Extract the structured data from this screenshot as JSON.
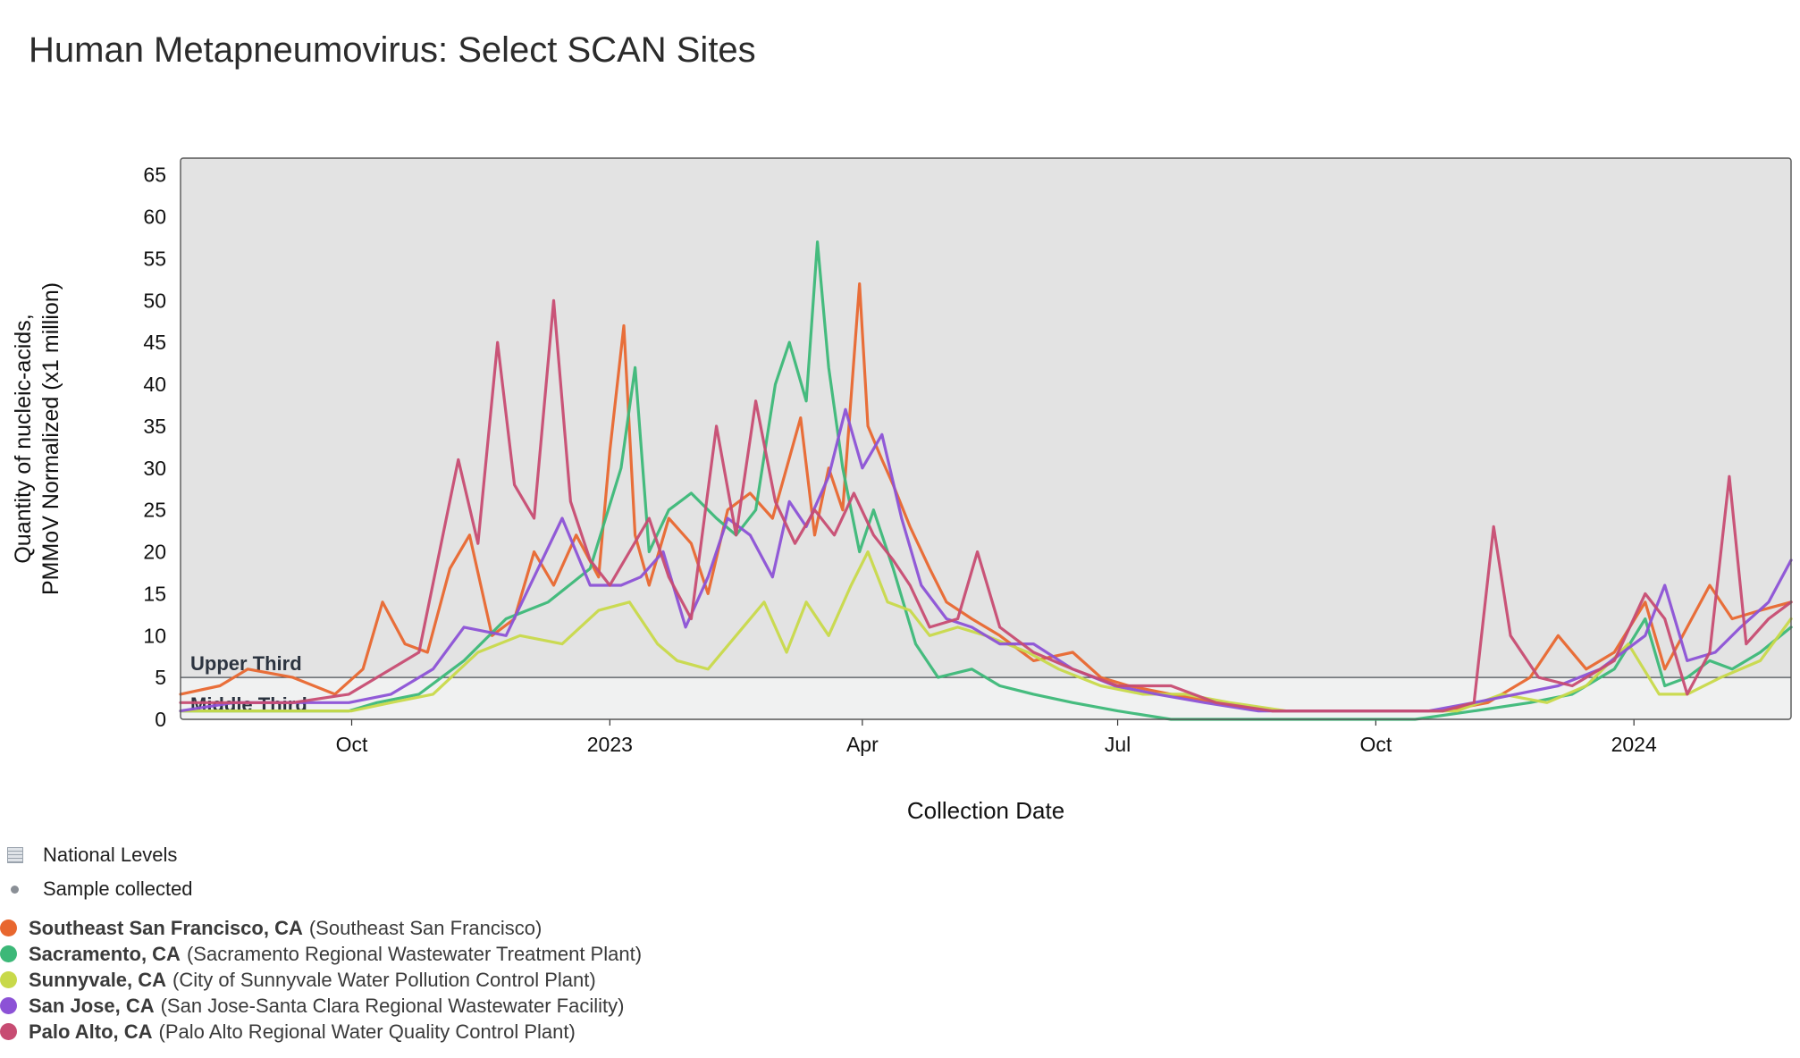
{
  "title": "Human Metapneumovirus: Select SCAN Sites",
  "chart_data": {
    "type": "line",
    "title": "Human Metapneumovirus: Select SCAN Sites",
    "xlabel": "Collection Date",
    "ylabel_line1": "Quantity of nucleic-acids,",
    "ylabel_line2": "PMMoV Normalized (x1 million)",
    "ylim": [
      0,
      67
    ],
    "xlim": [
      "2022-08-01",
      "2024-02-26"
    ],
    "yticks": [
      0,
      5,
      10,
      15,
      20,
      25,
      30,
      35,
      40,
      45,
      50,
      55,
      60,
      65
    ],
    "xticks": [
      {
        "date": "2022-10-01",
        "label": "Oct"
      },
      {
        "date": "2023-01-01",
        "label": "2023"
      },
      {
        "date": "2023-04-01",
        "label": "Apr"
      },
      {
        "date": "2023-07-01",
        "label": "Jul"
      },
      {
        "date": "2023-10-01",
        "label": "Oct"
      },
      {
        "date": "2024-01-01",
        "label": "2024"
      }
    ],
    "threshold": {
      "value": 5,
      "upper_label": "Upper Third",
      "middle_label": "Middle Third"
    },
    "series": [
      {
        "name": "Southeast San Francisco, CA",
        "color": "#e8672f",
        "points": [
          [
            "2022-08-01",
            3
          ],
          [
            "2022-08-15",
            4
          ],
          [
            "2022-08-25",
            6
          ],
          [
            "2022-09-10",
            5
          ],
          [
            "2022-09-25",
            3
          ],
          [
            "2022-10-05",
            6
          ],
          [
            "2022-10-12",
            14
          ],
          [
            "2022-10-20",
            9
          ],
          [
            "2022-10-28",
            8
          ],
          [
            "2022-11-05",
            18
          ],
          [
            "2022-11-12",
            22
          ],
          [
            "2022-11-20",
            10
          ],
          [
            "2022-11-28",
            12
          ],
          [
            "2022-12-05",
            20
          ],
          [
            "2022-12-12",
            16
          ],
          [
            "2022-12-20",
            22
          ],
          [
            "2022-12-28",
            17
          ],
          [
            "2023-01-01",
            32
          ],
          [
            "2023-01-06",
            47
          ],
          [
            "2023-01-10",
            22
          ],
          [
            "2023-01-15",
            16
          ],
          [
            "2023-01-22",
            24
          ],
          [
            "2023-01-30",
            21
          ],
          [
            "2023-02-05",
            15
          ],
          [
            "2023-02-12",
            25
          ],
          [
            "2023-02-20",
            27
          ],
          [
            "2023-02-28",
            24
          ],
          [
            "2023-03-05",
            30
          ],
          [
            "2023-03-10",
            36
          ],
          [
            "2023-03-15",
            22
          ],
          [
            "2023-03-20",
            30
          ],
          [
            "2023-03-25",
            25
          ],
          [
            "2023-03-31",
            52
          ],
          [
            "2023-04-03",
            35
          ],
          [
            "2023-04-08",
            31
          ],
          [
            "2023-04-12",
            28
          ],
          [
            "2023-04-18",
            23
          ],
          [
            "2023-04-25",
            18
          ],
          [
            "2023-05-01",
            14
          ],
          [
            "2023-05-10",
            12
          ],
          [
            "2023-05-20",
            10
          ],
          [
            "2023-06-01",
            7
          ],
          [
            "2023-06-15",
            8
          ],
          [
            "2023-06-25",
            5
          ],
          [
            "2023-07-05",
            4
          ],
          [
            "2023-07-20",
            3
          ],
          [
            "2023-08-05",
            2
          ],
          [
            "2023-08-25",
            1
          ],
          [
            "2023-09-15",
            1
          ],
          [
            "2023-10-05",
            1
          ],
          [
            "2023-10-25",
            1
          ],
          [
            "2023-11-10",
            2
          ],
          [
            "2023-11-25",
            5
          ],
          [
            "2023-12-05",
            10
          ],
          [
            "2023-12-15",
            6
          ],
          [
            "2023-12-25",
            8
          ],
          [
            "2024-01-05",
            14
          ],
          [
            "2024-01-12",
            6
          ],
          [
            "2024-01-20",
            11
          ],
          [
            "2024-01-28",
            16
          ],
          [
            "2024-02-05",
            12
          ],
          [
            "2024-02-15",
            13
          ],
          [
            "2024-02-26",
            14
          ]
        ]
      },
      {
        "name": "Sacramento, CA",
        "color": "#3cb878",
        "points": [
          [
            "2022-08-01",
            1
          ],
          [
            "2022-08-20",
            1
          ],
          [
            "2022-09-10",
            1
          ],
          [
            "2022-09-30",
            1
          ],
          [
            "2022-10-10",
            2
          ],
          [
            "2022-10-25",
            3
          ],
          [
            "2022-11-10",
            7
          ],
          [
            "2022-11-25",
            12
          ],
          [
            "2022-12-10",
            14
          ],
          [
            "2022-12-25",
            18
          ],
          [
            "2023-01-05",
            30
          ],
          [
            "2023-01-10",
            42
          ],
          [
            "2023-01-15",
            20
          ],
          [
            "2023-01-22",
            25
          ],
          [
            "2023-01-30",
            27
          ],
          [
            "2023-02-08",
            24
          ],
          [
            "2023-02-15",
            22
          ],
          [
            "2023-02-22",
            25
          ],
          [
            "2023-03-01",
            40
          ],
          [
            "2023-03-06",
            45
          ],
          [
            "2023-03-12",
            38
          ],
          [
            "2023-03-16",
            57
          ],
          [
            "2023-03-20",
            42
          ],
          [
            "2023-03-25",
            30
          ],
          [
            "2023-03-31",
            20
          ],
          [
            "2023-04-05",
            25
          ],
          [
            "2023-04-12",
            18
          ],
          [
            "2023-04-20",
            9
          ],
          [
            "2023-04-28",
            5
          ],
          [
            "2023-05-10",
            6
          ],
          [
            "2023-05-20",
            4
          ],
          [
            "2023-06-01",
            3
          ],
          [
            "2023-06-15",
            2
          ],
          [
            "2023-07-01",
            1
          ],
          [
            "2023-07-20",
            0
          ],
          [
            "2023-08-10",
            0
          ],
          [
            "2023-09-01",
            0
          ],
          [
            "2023-09-25",
            0
          ],
          [
            "2023-10-15",
            0
          ],
          [
            "2023-11-05",
            1
          ],
          [
            "2023-11-25",
            2
          ],
          [
            "2023-12-10",
            3
          ],
          [
            "2023-12-25",
            6
          ],
          [
            "2024-01-05",
            12
          ],
          [
            "2024-01-12",
            4
          ],
          [
            "2024-01-20",
            5
          ],
          [
            "2024-01-28",
            7
          ],
          [
            "2024-02-05",
            6
          ],
          [
            "2024-02-15",
            8
          ],
          [
            "2024-02-26",
            11
          ]
        ]
      },
      {
        "name": "Sunnyvale, CA",
        "color": "#c8d94a",
        "points": [
          [
            "2022-08-01",
            1
          ],
          [
            "2022-08-20",
            1
          ],
          [
            "2022-09-10",
            1
          ],
          [
            "2022-10-01",
            1
          ],
          [
            "2022-10-15",
            2
          ],
          [
            "2022-10-30",
            3
          ],
          [
            "2022-11-15",
            8
          ],
          [
            "2022-11-30",
            10
          ],
          [
            "2022-12-15",
            9
          ],
          [
            "2022-12-28",
            13
          ],
          [
            "2023-01-08",
            14
          ],
          [
            "2023-01-18",
            9
          ],
          [
            "2023-01-25",
            7
          ],
          [
            "2023-02-05",
            6
          ],
          [
            "2023-02-15",
            10
          ],
          [
            "2023-02-25",
            14
          ],
          [
            "2023-03-05",
            8
          ],
          [
            "2023-03-12",
            14
          ],
          [
            "2023-03-20",
            10
          ],
          [
            "2023-03-28",
            16
          ],
          [
            "2023-04-03",
            20
          ],
          [
            "2023-04-10",
            14
          ],
          [
            "2023-04-18",
            13
          ],
          [
            "2023-04-25",
            10
          ],
          [
            "2023-05-05",
            11
          ],
          [
            "2023-05-15",
            10
          ],
          [
            "2023-05-30",
            8
          ],
          [
            "2023-06-10",
            6
          ],
          [
            "2023-06-25",
            4
          ],
          [
            "2023-07-10",
            3
          ],
          [
            "2023-07-25",
            3
          ],
          [
            "2023-08-10",
            2
          ],
          [
            "2023-08-30",
            1
          ],
          [
            "2023-09-20",
            1
          ],
          [
            "2023-10-10",
            1
          ],
          [
            "2023-10-30",
            1
          ],
          [
            "2023-11-15",
            3
          ],
          [
            "2023-12-01",
            2
          ],
          [
            "2023-12-15",
            4
          ],
          [
            "2023-12-30",
            9
          ],
          [
            "2024-01-10",
            3
          ],
          [
            "2024-01-20",
            3
          ],
          [
            "2024-02-01",
            5
          ],
          [
            "2024-02-15",
            7
          ],
          [
            "2024-02-26",
            12
          ]
        ]
      },
      {
        "name": "San Jose, CA",
        "color": "#8c52d6",
        "points": [
          [
            "2022-08-01",
            1
          ],
          [
            "2022-08-20",
            2
          ],
          [
            "2022-09-10",
            2
          ],
          [
            "2022-09-30",
            2
          ],
          [
            "2022-10-15",
            3
          ],
          [
            "2022-10-30",
            6
          ],
          [
            "2022-11-10",
            11
          ],
          [
            "2022-11-25",
            10
          ],
          [
            "2022-12-05",
            17
          ],
          [
            "2022-12-15",
            24
          ],
          [
            "2022-12-25",
            16
          ],
          [
            "2023-01-05",
            16
          ],
          [
            "2023-01-12",
            17
          ],
          [
            "2023-01-20",
            20
          ],
          [
            "2023-01-28",
            11
          ],
          [
            "2023-02-05",
            17
          ],
          [
            "2023-02-12",
            24
          ],
          [
            "2023-02-20",
            22
          ],
          [
            "2023-02-28",
            17
          ],
          [
            "2023-03-06",
            26
          ],
          [
            "2023-03-12",
            23
          ],
          [
            "2023-03-20",
            29
          ],
          [
            "2023-03-26",
            37
          ],
          [
            "2023-04-01",
            30
          ],
          [
            "2023-04-08",
            34
          ],
          [
            "2023-04-15",
            24
          ],
          [
            "2023-04-22",
            16
          ],
          [
            "2023-05-01",
            12
          ],
          [
            "2023-05-10",
            11
          ],
          [
            "2023-05-20",
            9
          ],
          [
            "2023-06-01",
            9
          ],
          [
            "2023-06-15",
            6
          ],
          [
            "2023-06-30",
            4
          ],
          [
            "2023-07-15",
            3
          ],
          [
            "2023-08-01",
            2
          ],
          [
            "2023-08-20",
            1
          ],
          [
            "2023-09-10",
            1
          ],
          [
            "2023-10-01",
            1
          ],
          [
            "2023-10-20",
            1
          ],
          [
            "2023-11-05",
            2
          ],
          [
            "2023-11-20",
            3
          ],
          [
            "2023-12-05",
            4
          ],
          [
            "2023-12-20",
            6
          ],
          [
            "2024-01-05",
            10
          ],
          [
            "2024-01-12",
            16
          ],
          [
            "2024-01-20",
            7
          ],
          [
            "2024-01-30",
            8
          ],
          [
            "2024-02-08",
            11
          ],
          [
            "2024-02-18",
            14
          ],
          [
            "2024-02-26",
            19
          ]
        ]
      },
      {
        "name": "Palo Alto, CA",
        "color": "#c74c72",
        "points": [
          [
            "2022-08-01",
            2
          ],
          [
            "2022-08-20",
            2
          ],
          [
            "2022-09-10",
            2
          ],
          [
            "2022-09-30",
            3
          ],
          [
            "2022-10-10",
            5
          ],
          [
            "2022-10-25",
            8
          ],
          [
            "2022-11-08",
            31
          ],
          [
            "2022-11-15",
            21
          ],
          [
            "2022-11-22",
            45
          ],
          [
            "2022-11-28",
            28
          ],
          [
            "2022-12-05",
            24
          ],
          [
            "2022-12-12",
            50
          ],
          [
            "2022-12-18",
            26
          ],
          [
            "2022-12-25",
            19
          ],
          [
            "2023-01-01",
            16
          ],
          [
            "2023-01-08",
            20
          ],
          [
            "2023-01-15",
            24
          ],
          [
            "2023-01-22",
            17
          ],
          [
            "2023-01-30",
            12
          ],
          [
            "2023-02-08",
            35
          ],
          [
            "2023-02-15",
            22
          ],
          [
            "2023-02-22",
            38
          ],
          [
            "2023-03-01",
            26
          ],
          [
            "2023-03-08",
            21
          ],
          [
            "2023-03-15",
            25
          ],
          [
            "2023-03-22",
            22
          ],
          [
            "2023-03-29",
            27
          ],
          [
            "2023-04-05",
            22
          ],
          [
            "2023-04-12",
            19
          ],
          [
            "2023-04-18",
            16
          ],
          [
            "2023-04-25",
            11
          ],
          [
            "2023-05-05",
            12
          ],
          [
            "2023-05-12",
            20
          ],
          [
            "2023-05-20",
            11
          ],
          [
            "2023-06-01",
            8
          ],
          [
            "2023-06-15",
            6
          ],
          [
            "2023-07-01",
            4
          ],
          [
            "2023-07-20",
            4
          ],
          [
            "2023-08-05",
            2
          ],
          [
            "2023-08-25",
            1
          ],
          [
            "2023-09-15",
            1
          ],
          [
            "2023-10-05",
            1
          ],
          [
            "2023-10-25",
            1
          ],
          [
            "2023-11-05",
            2
          ],
          [
            "2023-11-12",
            23
          ],
          [
            "2023-11-18",
            10
          ],
          [
            "2023-11-28",
            5
          ],
          [
            "2023-12-10",
            4
          ],
          [
            "2023-12-25",
            7
          ],
          [
            "2024-01-05",
            15
          ],
          [
            "2024-01-12",
            12
          ],
          [
            "2024-01-20",
            3
          ],
          [
            "2024-01-28",
            8
          ],
          [
            "2024-02-04",
            29
          ],
          [
            "2024-02-10",
            9
          ],
          [
            "2024-02-18",
            12
          ],
          [
            "2024-02-26",
            14
          ]
        ]
      }
    ]
  },
  "legend": {
    "national_levels": "National Levels",
    "sample_collected": "Sample collected",
    "sites": [
      {
        "name": "Southeast San Francisco, CA",
        "plant": "(Southeast San Francisco)",
        "color": "#e8672f"
      },
      {
        "name": "Sacramento, CA",
        "plant": "(Sacramento Regional Wastewater Treatment Plant)",
        "color": "#3cb878"
      },
      {
        "name": "Sunnyvale, CA",
        "plant": "(City of Sunnyvale Water Pollution Control Plant)",
        "color": "#c8d94a"
      },
      {
        "name": "San Jose, CA",
        "plant": "(San Jose-Santa Clara Regional Wastewater Facility)",
        "color": "#8c52d6"
      },
      {
        "name": "Palo Alto, CA",
        "plant": "(Palo Alto Regional Water Quality Control Plant)",
        "color": "#c74c72"
      }
    ]
  }
}
